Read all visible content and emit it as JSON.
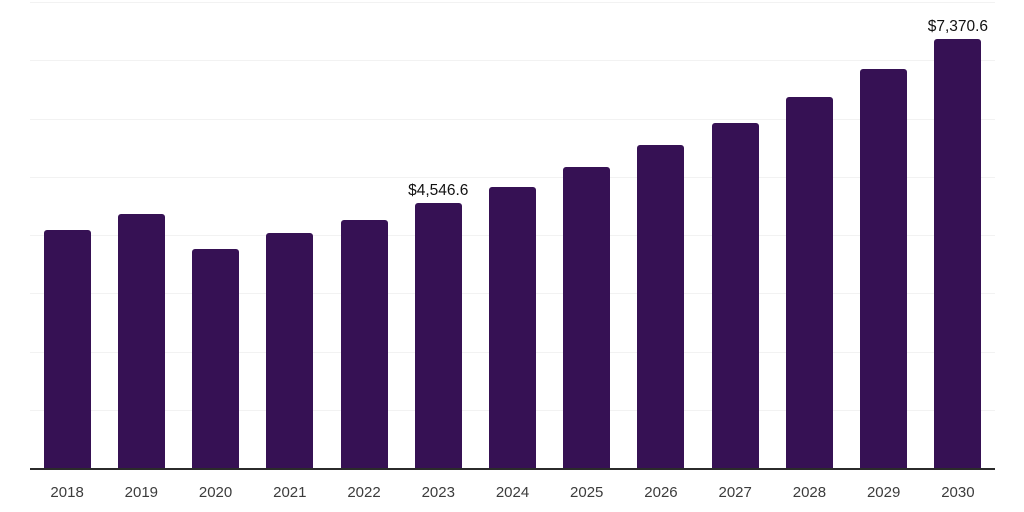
{
  "chart_data": {
    "type": "bar",
    "title": "",
    "xlabel": "",
    "ylabel": "",
    "categories": [
      "2018",
      "2019",
      "2020",
      "2021",
      "2022",
      "2023",
      "2024",
      "2025",
      "2026",
      "2027",
      "2028",
      "2029",
      "2030"
    ],
    "values": [
      4080,
      4360,
      3760,
      4030,
      4260,
      4546.6,
      4830,
      5160,
      5540,
      5930,
      6370,
      6850,
      7370.6
    ],
    "value_labels": [
      "",
      "",
      "",
      "",
      "",
      "$4,546.6",
      "",
      "",
      "",
      "",
      "",
      "",
      "$7,370.6"
    ],
    "ylim": [
      0,
      8000
    ],
    "gridline_step": 1000,
    "grid": "horizontal",
    "y_axis_tick_labels": "none",
    "legend_position": "none",
    "colors": {
      "bar": "#361154",
      "axis_line": "#2b2b2b",
      "gridline": "#f2f2f2",
      "tick_label": "#3c3c3c",
      "value_label": "#111111",
      "background": "#ffffff"
    }
  }
}
